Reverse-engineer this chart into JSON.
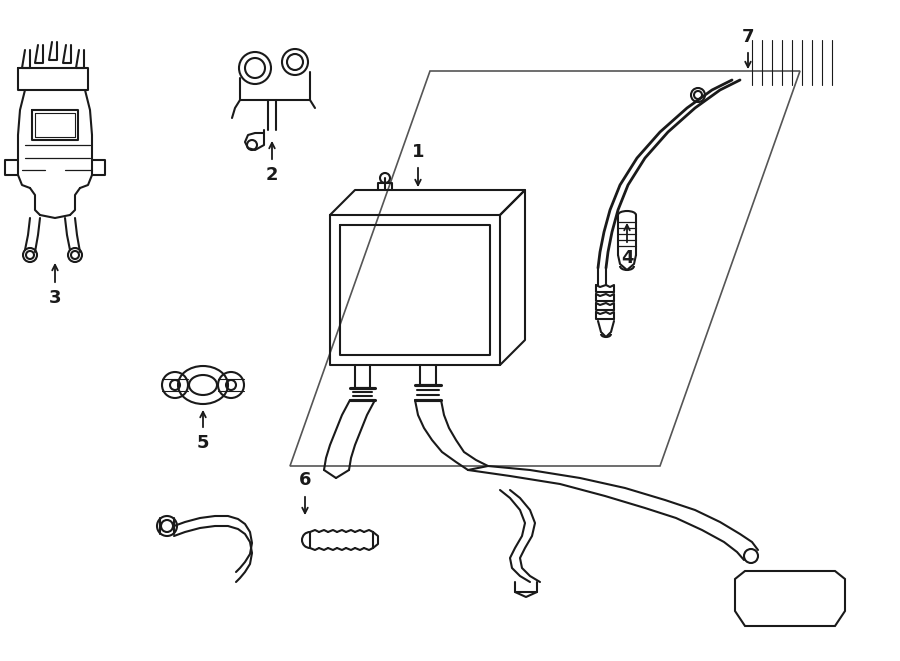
{
  "bg_color": "#ffffff",
  "line_color": "#1a1a1a",
  "line_width": 1.5,
  "figsize": [
    9.0,
    6.61
  ],
  "dpi": 100
}
